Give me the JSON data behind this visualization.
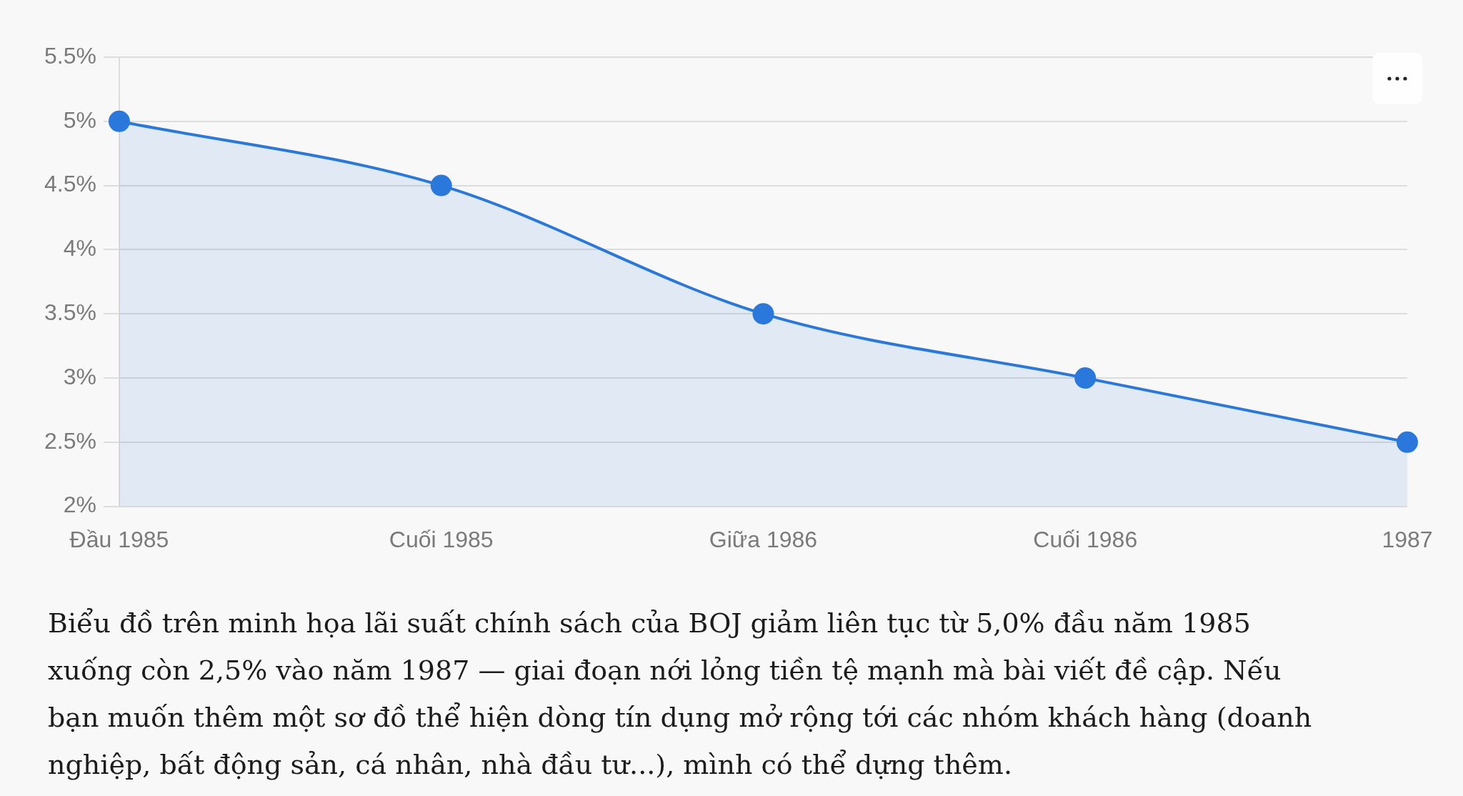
{
  "chart_data": {
    "type": "area",
    "categories": [
      "Đầu 1985",
      "Cuối 1985",
      "Giữa 1986",
      "Cuối 1986",
      "1987"
    ],
    "values": [
      5,
      4.5,
      3.5,
      3,
      2.5
    ],
    "color": "#2a78dc",
    "ylim": [
      2,
      5.5
    ],
    "yticks": [
      {
        "value": 2,
        "label": "2%"
      },
      {
        "value": 2.5,
        "label": "2.5%"
      },
      {
        "value": 3,
        "label": "3%"
      },
      {
        "value": 3.5,
        "label": "3.5%"
      },
      {
        "value": 4,
        "label": "4%"
      },
      {
        "value": 4.5,
        "label": "4.5%"
      },
      {
        "value": 5,
        "label": "5%"
      },
      {
        "value": 5.5,
        "label": "5.5%"
      }
    ],
    "grid": "y",
    "marker": "circle",
    "annotations": [
      "Biểu đồ trên minh họa lãi suất chính sách của BOJ giảm liên tục từ 5,0% đầu năm 1985 xuống còn 2,5% vào năm 1987 — giai đoạn nới lỏng tiền tệ mạnh mà bài viết đề cập. Nếu bạn muốn thêm một sơ đồ thể hiện dòng tín dụng mở rộng tới các nhóm khách hàng (doanh nghiệp, bất động sản, cá nhân, nhà đầu tư...), mình có thể dựng thêm."
    ]
  }
}
